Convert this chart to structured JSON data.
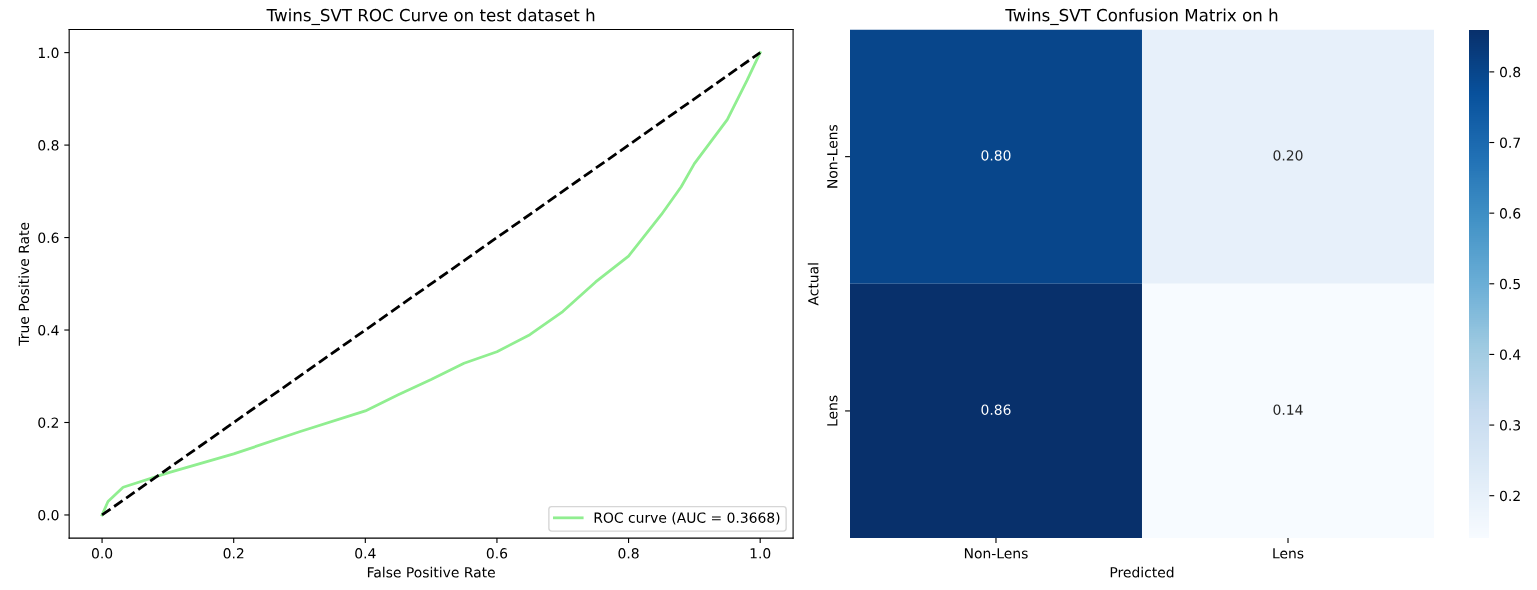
{
  "chart_data": [
    {
      "type": "line",
      "title": "Twins_SVT ROC Curve on test dataset h",
      "xlabel": "False Positive Rate",
      "ylabel": "True Positive Rate",
      "series": [
        {
          "name": "ROC curve (AUC = 0.3668)",
          "color": "#90ee90",
          "line_style": "solid",
          "x": [
            0,
            0.009,
            0.032,
            0.1,
            0.2,
            0.3,
            0.4,
            0.45,
            0.5,
            0.55,
            0.6,
            0.65,
            0.7,
            0.75,
            0.8,
            0.85,
            0.88,
            0.9,
            0.95,
            0.98,
            1.0
          ],
          "values": [
            0,
            0.029,
            0.06,
            0.091,
            0.132,
            0.18,
            0.225,
            0.26,
            0.293,
            0.328,
            0.353,
            0.39,
            0.44,
            0.504,
            0.56,
            0.65,
            0.71,
            0.76,
            0.855,
            0.94,
            1.0
          ]
        },
        {
          "color": "#000000",
          "line_style": "dashed",
          "x": [
            0,
            1
          ],
          "values": [
            0,
            1
          ]
        }
      ],
      "xlim": [
        -0.05,
        1.05
      ],
      "ylim": [
        -0.05,
        1.05
      ],
      "xticks": [
        {
          "value": 0,
          "label": "0.0"
        },
        {
          "value": 0.2,
          "label": "0.2"
        },
        {
          "value": 0.4,
          "label": "0.4"
        },
        {
          "value": 0.6,
          "label": "0.6"
        },
        {
          "value": 0.8,
          "label": "0.8"
        },
        {
          "value": 1.0,
          "label": "1.0"
        }
      ],
      "yticks": [
        {
          "value": 0,
          "label": "0.0"
        },
        {
          "value": 0.2,
          "label": "0.2"
        },
        {
          "value": 0.4,
          "label": "0.4"
        },
        {
          "value": 0.6,
          "label": "0.6"
        },
        {
          "value": 0.8,
          "label": "0.8"
        },
        {
          "value": 1.0,
          "label": "1.0"
        }
      ],
      "legend": "bottom right",
      "grid": false
    },
    {
      "type": "heatmap",
      "title": "Twins_SVT Confusion Matrix on h",
      "xlabel": "Predicted",
      "ylabel": "Actual",
      "categories": [
        "Non-Lens",
        "Lens"
      ],
      "y_categories": [
        "Non-Lens",
        "Lens"
      ],
      "cells": [
        [
          0.8,
          0.2
        ],
        [
          0.86,
          0.14
        ]
      ],
      "cell_labels": [
        [
          "0.80",
          "0.20"
        ],
        [
          "0.86",
          "0.14"
        ]
      ],
      "clim": [
        0.14,
        0.86
      ],
      "cticks": [
        {
          "value": 0.2,
          "label": "0.2"
        },
        {
          "value": 0.3,
          "label": "0.3"
        },
        {
          "value": 0.4,
          "label": "0.4"
        },
        {
          "value": 0.5,
          "label": "0.5"
        },
        {
          "value": 0.6,
          "label": "0.6"
        },
        {
          "value": 0.7,
          "label": "0.7"
        },
        {
          "value": 0.8,
          "label": "0.8"
        }
      ]
    }
  ]
}
